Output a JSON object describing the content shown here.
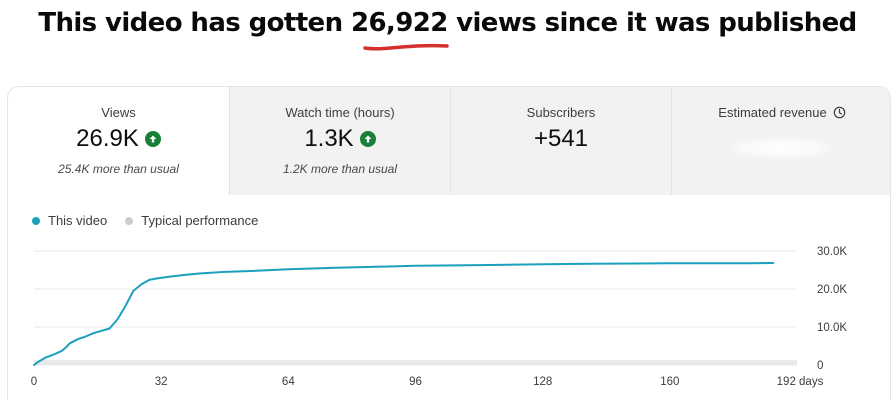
{
  "headline": {
    "before": "This video has gotten ",
    "number": "26,922",
    "after": " views since it was published"
  },
  "metrics": [
    {
      "label": "Views",
      "value": "26.9K",
      "note": "25.4K more than usual",
      "trend": "up"
    },
    {
      "label": "Watch time (hours)",
      "value": "1.3K",
      "note": "1.2K more than usual",
      "trend": "up"
    },
    {
      "label": "Subscribers",
      "value": "+541"
    },
    {
      "label": "Estimated revenue",
      "icon": "clock-icon",
      "value_redacted": true
    }
  ],
  "legend": {
    "this_video": "This video",
    "typical": "Typical performance"
  },
  "colors": {
    "series": "#1ba0be",
    "typical_dot": "#cccccc",
    "trend_up": "#188038",
    "underline": "#d32f2f"
  },
  "chart_data": {
    "type": "line",
    "x_unit": "days",
    "x_ticks": [
      "0",
      "32",
      "64",
      "96",
      "128",
      "160",
      "192 days"
    ],
    "x_tick_values": [
      0,
      32,
      64,
      96,
      128,
      160,
      192
    ],
    "y_ticks": [
      "0",
      "10.0K",
      "20.0K",
      "30.0K"
    ],
    "y_tick_values": [
      0,
      10000,
      20000,
      30000
    ],
    "xlim": [
      0,
      192
    ],
    "ylim": [
      0,
      30000
    ],
    "series": [
      {
        "name": "This video",
        "x": [
          0,
          1,
          3,
          5,
          7,
          8,
          9,
          11,
          13,
          15,
          17,
          19,
          21,
          23,
          25,
          27,
          29,
          31,
          34,
          38,
          42,
          48,
          56,
          64,
          76,
          88,
          96,
          112,
          128,
          140,
          160,
          180,
          186
        ],
        "y": [
          0,
          800,
          2000,
          2800,
          3700,
          4600,
          5700,
          6800,
          7500,
          8400,
          9000,
          9600,
          12000,
          15500,
          19500,
          21200,
          22400,
          22800,
          23200,
          23700,
          24100,
          24500,
          24800,
          25200,
          25600,
          25900,
          26100,
          26300,
          26500,
          26650,
          26750,
          26800,
          26850
        ]
      }
    ],
    "grid": true
  }
}
